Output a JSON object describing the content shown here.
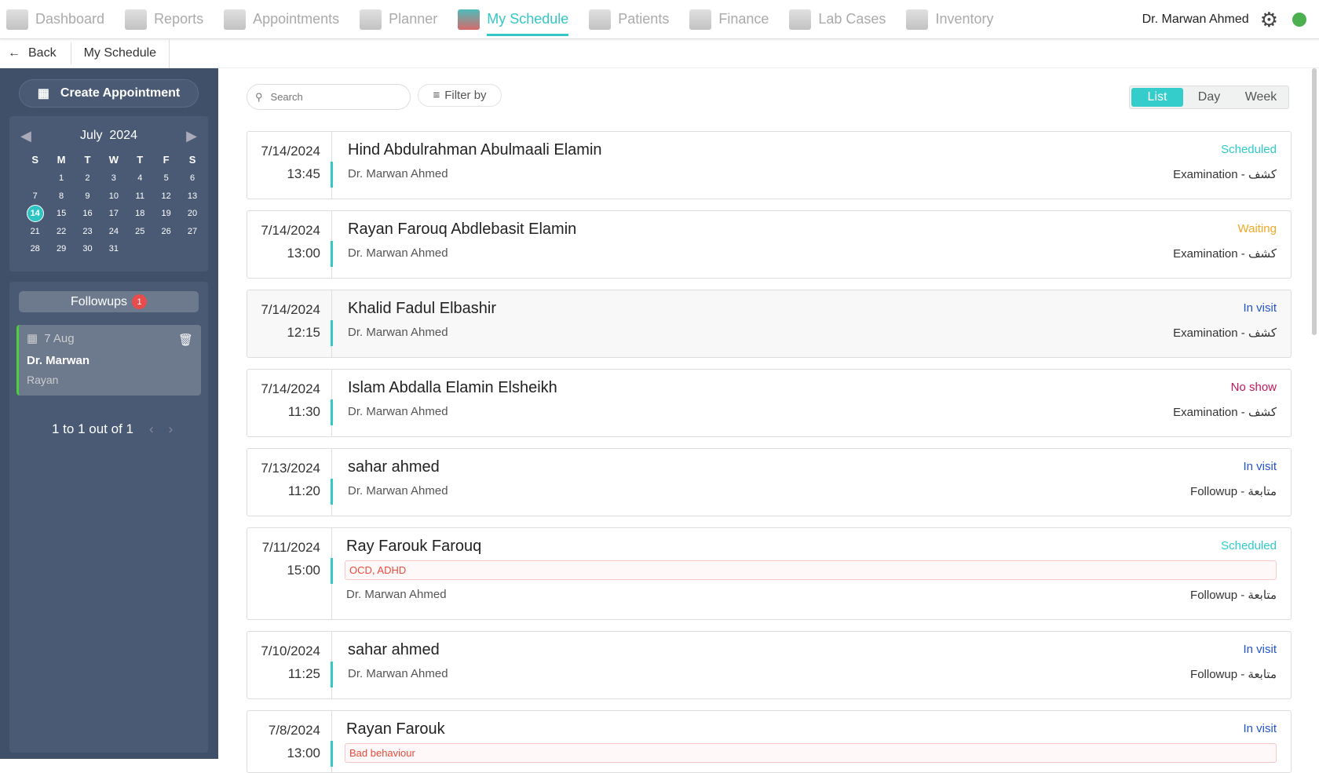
{
  "nav": {
    "items": [
      {
        "label": "Dashboard",
        "icon": "monitor-icon"
      },
      {
        "label": "Reports",
        "icon": "bar-chart-icon"
      },
      {
        "label": "Appointments",
        "icon": "calendar-icon"
      },
      {
        "label": "Planner",
        "icon": "clipboard-stethoscope-icon"
      },
      {
        "label": "My Schedule",
        "icon": "schedule-calendar-icon",
        "active": true
      },
      {
        "label": "Patients",
        "icon": "patients-icon"
      },
      {
        "label": "Finance",
        "icon": "calculator-icon"
      },
      {
        "label": "Lab Cases",
        "icon": "lab-users-icon"
      },
      {
        "label": "Inventory",
        "icon": "inventory-users-icon"
      }
    ],
    "user": "Dr. Marwan Ahmed",
    "accent": "#35c6c6",
    "online_color": "#4caf50"
  },
  "breadcrumb": {
    "back": "Back",
    "current": "My Schedule"
  },
  "sidebar": {
    "create": "Create Appointment",
    "calendar": {
      "month": "July",
      "year": "2024",
      "weekdays": [
        "S",
        "M",
        "T",
        "W",
        "T",
        "F",
        "S"
      ],
      "selected": 14,
      "days": 31,
      "start_offset": 1
    },
    "followups": {
      "label": "Followups",
      "count": "1",
      "item": {
        "date": "7 Aug",
        "doctor": "Dr. Marwan",
        "patient": "Rayan"
      },
      "pager": "1 to 1 out of 1"
    }
  },
  "toolbar": {
    "search_placeholder": "Search",
    "filter": "Filter by",
    "views": [
      "List",
      "Day",
      "Week"
    ],
    "active_view": "List"
  },
  "status_colors": {
    "Scheduled": "#2ecbcb",
    "Waiting": "#f5a623",
    "In visit": "#2255cc",
    "No show": "#c2185b"
  },
  "appointments": [
    {
      "date": "7/14/2024",
      "time": "13:45",
      "patient": "Hind Abdulrahman Abulmaali Elamin",
      "doctor": "Dr. Marwan Ahmed",
      "status": "Scheduled",
      "type": "Examination - كشف"
    },
    {
      "date": "7/14/2024",
      "time": "13:00",
      "patient": "Rayan Farouq Abdlebasit Elamin",
      "doctor": "Dr. Marwan Ahmed",
      "status": "Waiting",
      "type": "Examination - كشف"
    },
    {
      "date": "7/14/2024",
      "time": "12:15",
      "patient": "Khalid Fadul Elbashir",
      "doctor": "Dr. Marwan Ahmed",
      "status": "In visit",
      "type": "Examination - كشف"
    },
    {
      "date": "7/14/2024",
      "time": "11:30",
      "patient": "Islam Abdalla Elamin Elsheikh",
      "doctor": "Dr. Marwan Ahmed",
      "status": "No show",
      "type": "Examination - كشف"
    },
    {
      "date": "7/13/2024",
      "time": "11:20",
      "patient": "sahar ahmed",
      "doctor": "Dr. Marwan Ahmed",
      "status": "In visit",
      "type": "Followup - متابعة"
    },
    {
      "date": "7/11/2024",
      "time": "15:00",
      "patient": "Ray Farouk Farouq",
      "tag": "OCD, ADHD",
      "doctor": "Dr. Marwan Ahmed",
      "status": "Scheduled",
      "type": "Followup - متابعة"
    },
    {
      "date": "7/10/2024",
      "time": "11:25",
      "patient": "sahar ahmed",
      "doctor": "Dr. Marwan Ahmed",
      "status": "In visit",
      "type": "Followup - متابعة"
    },
    {
      "date": "7/8/2024",
      "time": "13:00",
      "patient": "Rayan Farouk",
      "tag": "Bad behaviour",
      "doctor": "",
      "status": "In visit",
      "type": ""
    }
  ]
}
